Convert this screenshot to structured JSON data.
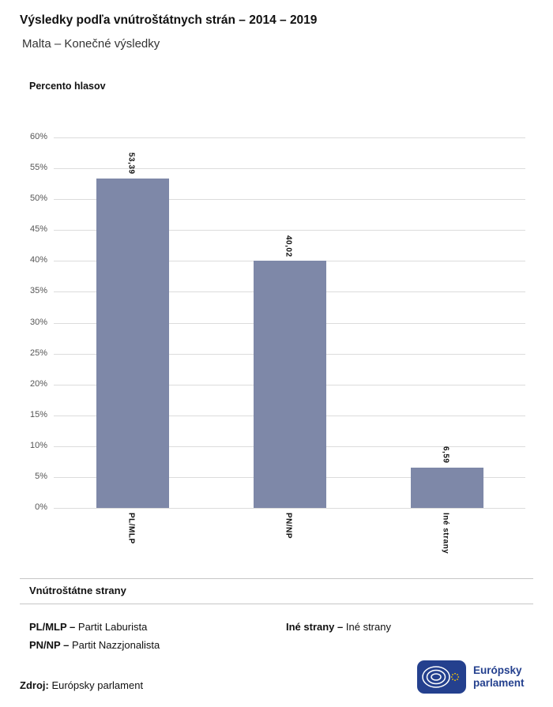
{
  "header": {
    "title": "Výsledky podľa vnútroštátnych strán – 2014 – 2019",
    "subtitle": "Malta – Konečné výsledky"
  },
  "chart_data": {
    "type": "bar",
    "axis_title": "Percento hlasov",
    "categories": [
      "PL/MLP",
      "PN/NP",
      "Iné strany"
    ],
    "values": [
      53.39,
      40.02,
      6.59
    ],
    "value_labels": [
      "53,39",
      "40,02",
      "6,59"
    ],
    "ylim": [
      0,
      60
    ],
    "ytick_step": 5,
    "ytick_suffix": "%",
    "grid": true,
    "legend_position": "below",
    "bar_color": "#7e88a8"
  },
  "legend": {
    "heading": "Vnútroštátne strany",
    "items": [
      {
        "abbr": "PL/MLP –",
        "name": "Partit Laburista"
      },
      {
        "abbr": "PN/NP –",
        "name": "Partit Nazzjonalista"
      },
      {
        "abbr": "Iné strany –",
        "name": "Iné strany"
      }
    ]
  },
  "footer": {
    "source_label": "Zdroj:",
    "source_value": "Európsky parlament",
    "logo": {
      "text": "Európsky parlament",
      "color": "#24408e"
    }
  }
}
